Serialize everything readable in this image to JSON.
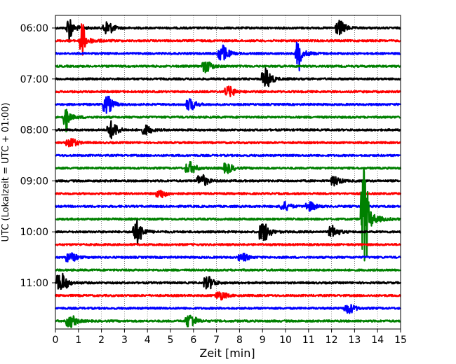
{
  "chart_data": {
    "type": "line",
    "title": "",
    "xlabel": "Zeit  [min]",
    "ylabel": "UTC (Lokalzeit = UTC + 01:00)",
    "xlim": [
      0,
      15
    ],
    "x_ticks": [
      "0",
      "1",
      "2",
      "3",
      "4",
      "5",
      "6",
      "7",
      "8",
      "9",
      "10",
      "11",
      "12",
      "13",
      "14",
      "15"
    ],
    "y_tick_labels": [
      "06:00",
      "07:00",
      "08:00",
      "09:00",
      "10:00",
      "11:00"
    ],
    "trace_interval_min": 15,
    "grid": "vertical dotted at each minute",
    "colors": [
      "#000000",
      "#ff0000",
      "#0000ff",
      "#008000"
    ],
    "series": [
      {
        "start": "06:00",
        "color": "#000000",
        "events": [
          {
            "t": 0.6,
            "amp": 1.2
          },
          {
            "t": 2.2,
            "amp": 0.5
          },
          {
            "t": 12.3,
            "amp": 0.5
          }
        ]
      },
      {
        "start": "06:15",
        "color": "#ff0000",
        "events": [
          {
            "t": 1.15,
            "amp": 1.6
          }
        ]
      },
      {
        "start": "06:30",
        "color": "#0000ff",
        "events": [
          {
            "t": 7.2,
            "amp": 0.6
          },
          {
            "t": 10.55,
            "amp": 1.4
          }
        ]
      },
      {
        "start": "06:45",
        "color": "#008000",
        "events": [
          {
            "t": 6.5,
            "amp": 0.4
          }
        ]
      },
      {
        "start": "07:00",
        "color": "#000000",
        "events": [
          {
            "t": 9.1,
            "amp": 0.7
          }
        ]
      },
      {
        "start": "07:15",
        "color": "#ff0000",
        "events": [
          {
            "t": 7.5,
            "amp": 0.35
          }
        ]
      },
      {
        "start": "07:30",
        "color": "#0000ff",
        "events": [
          {
            "t": 2.2,
            "amp": 0.6
          },
          {
            "t": 5.8,
            "amp": 0.4
          }
        ]
      },
      {
        "start": "07:45",
        "color": "#008000",
        "events": [
          {
            "t": 0.45,
            "amp": 1.1
          }
        ]
      },
      {
        "start": "08:00",
        "color": "#000000",
        "events": [
          {
            "t": 2.4,
            "amp": 0.6
          },
          {
            "t": 3.9,
            "amp": 0.3
          }
        ]
      },
      {
        "start": "08:15",
        "color": "#ff0000",
        "events": [
          {
            "t": 0.6,
            "amp": 0.35
          }
        ]
      },
      {
        "start": "08:30",
        "color": "#0000ff",
        "events": []
      },
      {
        "start": "08:45",
        "color": "#008000",
        "events": [
          {
            "t": 5.8,
            "amp": 0.4
          },
          {
            "t": 7.4,
            "amp": 0.35
          }
        ]
      },
      {
        "start": "09:00",
        "color": "#000000",
        "events": [
          {
            "t": 6.3,
            "amp": 0.45
          },
          {
            "t": 12.1,
            "amp": 0.3
          }
        ]
      },
      {
        "start": "09:15",
        "color": "#ff0000",
        "events": [
          {
            "t": 4.5,
            "amp": 0.3
          }
        ]
      },
      {
        "start": "09:30",
        "color": "#0000ff",
        "events": [
          {
            "t": 9.9,
            "amp": 0.3
          },
          {
            "t": 11.0,
            "amp": 0.3
          }
        ]
      },
      {
        "start": "09:45",
        "color": "#008000",
        "events": [
          {
            "t": 13.4,
            "amp": 4.4
          }
        ]
      },
      {
        "start": "10:00",
        "color": "#000000",
        "events": [
          {
            "t": 3.5,
            "amp": 0.8
          },
          {
            "t": 9.0,
            "amp": 0.7
          },
          {
            "t": 12.0,
            "amp": 0.4
          }
        ]
      },
      {
        "start": "10:15",
        "color": "#ff0000",
        "events": []
      },
      {
        "start": "10:30",
        "color": "#0000ff",
        "events": [
          {
            "t": 0.6,
            "amp": 0.35
          },
          {
            "t": 8.1,
            "amp": 0.25
          }
        ]
      },
      {
        "start": "10:45",
        "color": "#008000",
        "events": []
      },
      {
        "start": "11:00",
        "color": "#000000",
        "events": [
          {
            "t": 0.2,
            "amp": 0.7
          },
          {
            "t": 6.6,
            "amp": 0.45
          }
        ]
      },
      {
        "start": "11:15",
        "color": "#ff0000",
        "events": [
          {
            "t": 7.1,
            "amp": 0.3
          }
        ]
      },
      {
        "start": "11:30",
        "color": "#0000ff",
        "events": [
          {
            "t": 12.7,
            "amp": 0.35
          }
        ]
      },
      {
        "start": "11:45",
        "color": "#008000",
        "events": [
          {
            "t": 0.6,
            "amp": 0.45
          },
          {
            "t": 5.8,
            "amp": 0.5
          }
        ]
      }
    ]
  }
}
